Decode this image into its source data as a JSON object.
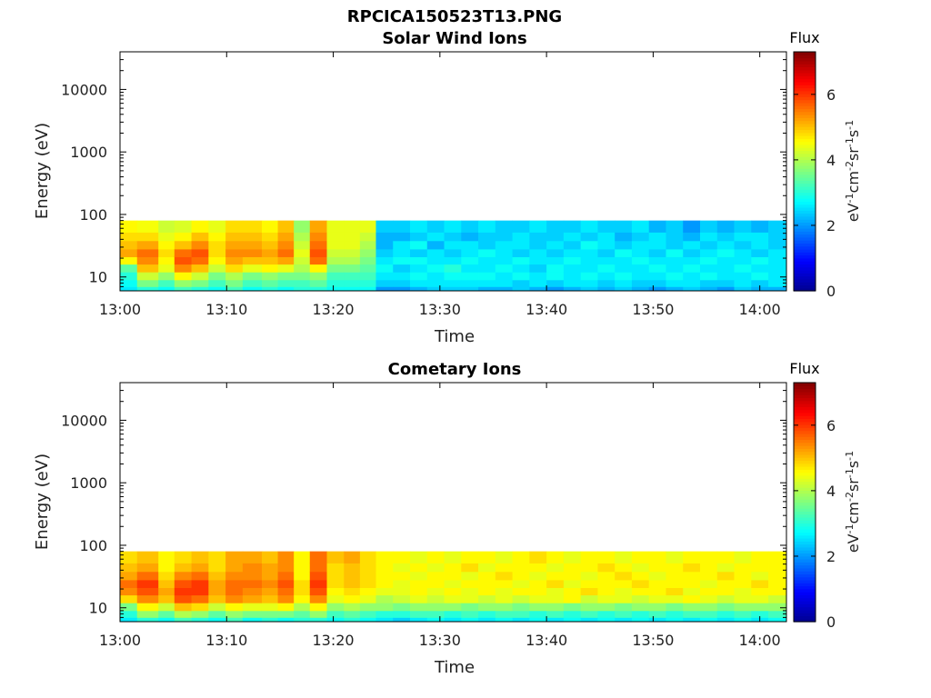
{
  "figure": {
    "title": "RPCICA150523T13.PNG",
    "colormap": [
      "#00008f",
      "#0000ff",
      "#00ffff",
      "#ffff00",
      "#ff0000",
      "#800000"
    ]
  },
  "chart_data": [
    {
      "type": "heatmap",
      "title": "Solar Wind Ions",
      "xlabel": "Time",
      "ylabel": "Energy (eV)",
      "x_unit": "minutes after 13:00",
      "xlim": [
        0,
        62.5
      ],
      "x_ticks": [
        "13:00",
        "13:10",
        "13:20",
        "13:30",
        "13:40",
        "13:50",
        "14:00"
      ],
      "y_scale": "log",
      "ylim": [
        6,
        40000
      ],
      "y_ticks": [
        "10",
        "100",
        "1000",
        "10000"
      ],
      "colorbar": {
        "label": "Flux",
        "unit": "eV⁻¹cm⁻²sr⁻¹s⁻¹",
        "range": [
          0,
          7.3
        ],
        "ticks": [
          "0",
          "2",
          "4",
          "6"
        ]
      },
      "data_energy_range": [
        6,
        80
      ],
      "x_edges": [
        0,
        1.6,
        3.6,
        5.1,
        6.7,
        8.3,
        9.9,
        11.5,
        13.3,
        14.8,
        16.3,
        17.8,
        19.4,
        21.0,
        22.5,
        24.0,
        25.6,
        27.2,
        28.8,
        30.4,
        32.0,
        33.6,
        35.2,
        36.8,
        38.4,
        40.0,
        41.6,
        43.2,
        44.8,
        46.4,
        48.0,
        49.6,
        51.2,
        52.8,
        54.4,
        56.0,
        57.6,
        59.2,
        60.8,
        62.5
      ],
      "y_edges": [
        6,
        7,
        9,
        12,
        16,
        21,
        28,
        38,
        52,
        80
      ],
      "flux": [
        [
          2.6,
          2.8,
          3.0,
          3.4,
          4.6,
          5.2,
          5.0,
          4.8,
          4.6
        ],
        [
          3.0,
          3.6,
          4.2,
          5.0,
          5.4,
          5.6,
          5.2,
          4.8,
          4.5
        ],
        [
          2.8,
          3.2,
          3.8,
          4.4,
          4.6,
          4.8,
          4.6,
          4.4,
          4.2
        ],
        [
          3.2,
          3.8,
          4.6,
          5.4,
          5.8,
          5.6,
          5.0,
          4.6,
          4.3
        ],
        [
          3.0,
          3.6,
          4.2,
          5.0,
          5.6,
          5.8,
          5.4,
          5.0,
          4.6
        ],
        [
          2.8,
          3.2,
          3.6,
          4.2,
          4.6,
          4.8,
          4.8,
          4.6,
          4.4
        ],
        [
          3.2,
          3.6,
          4.0,
          4.8,
          5.2,
          5.4,
          5.2,
          5.0,
          4.8
        ],
        [
          2.8,
          3.2,
          3.6,
          4.4,
          5.0,
          5.4,
          5.2,
          5.0,
          4.8
        ],
        [
          3.0,
          3.4,
          3.8,
          4.6,
          5.0,
          5.2,
          5.0,
          4.8,
          4.6
        ],
        [
          2.8,
          3.2,
          3.6,
          4.4,
          5.2,
          5.6,
          5.4,
          5.2,
          5.0
        ],
        [
          3.0,
          3.2,
          3.6,
          4.0,
          4.2,
          4.4,
          4.2,
          4.0,
          3.8
        ],
        [
          3.0,
          3.4,
          3.8,
          4.6,
          5.6,
          5.8,
          5.6,
          5.4,
          5.2
        ],
        [
          2.8,
          3.0,
          3.2,
          3.6,
          4.0,
          4.2,
          4.4,
          4.4,
          4.4
        ],
        [
          2.8,
          3.0,
          3.2,
          3.6,
          4.0,
          4.2,
          4.4,
          4.4,
          4.4
        ],
        [
          2.8,
          3.0,
          3.2,
          3.4,
          3.6,
          3.8,
          4.0,
          4.2,
          4.4
        ],
        [
          2.0,
          2.4,
          2.6,
          2.8,
          2.6,
          2.4,
          2.2,
          2.2,
          2.4
        ],
        [
          2.0,
          2.4,
          2.6,
          2.4,
          2.8,
          2.6,
          2.6,
          2.2,
          2.4
        ],
        [
          2.2,
          2.6,
          2.8,
          2.6,
          2.8,
          2.4,
          2.8,
          2.4,
          2.6
        ],
        [
          2.4,
          2.6,
          2.6,
          2.8,
          2.6,
          2.6,
          2.2,
          2.6,
          2.4
        ],
        [
          2.4,
          2.6,
          2.8,
          3.0,
          2.6,
          2.4,
          2.6,
          2.4,
          2.6
        ],
        [
          2.4,
          2.6,
          2.8,
          2.6,
          2.8,
          2.6,
          2.6,
          2.2,
          2.4
        ],
        [
          2.2,
          2.6,
          2.8,
          2.6,
          2.6,
          2.8,
          2.4,
          2.4,
          2.6
        ],
        [
          2.2,
          2.6,
          2.6,
          2.8,
          2.6,
          2.6,
          2.6,
          2.4,
          2.4
        ],
        [
          2.4,
          2.4,
          2.8,
          2.6,
          2.8,
          2.4,
          2.6,
          2.6,
          2.4
        ],
        [
          2.2,
          2.6,
          2.6,
          2.4,
          2.6,
          2.6,
          2.4,
          2.4,
          2.6
        ],
        [
          2.0,
          2.4,
          2.8,
          2.8,
          2.6,
          2.4,
          2.6,
          2.4,
          2.4
        ],
        [
          2.2,
          2.6,
          2.6,
          2.6,
          2.8,
          2.6,
          2.4,
          2.6,
          2.4
        ],
        [
          2.4,
          2.6,
          2.8,
          2.6,
          2.6,
          2.6,
          2.8,
          2.4,
          2.6
        ],
        [
          2.2,
          2.4,
          2.6,
          2.8,
          2.6,
          2.4,
          2.6,
          2.6,
          2.4
        ],
        [
          2.4,
          2.6,
          2.8,
          2.6,
          2.6,
          2.8,
          2.4,
          2.2,
          2.4
        ],
        [
          2.2,
          2.4,
          2.6,
          2.6,
          2.8,
          2.6,
          2.6,
          2.4,
          2.6
        ],
        [
          2.0,
          2.4,
          2.6,
          2.8,
          2.6,
          2.4,
          2.6,
          2.6,
          2.2
        ],
        [
          2.2,
          2.6,
          2.8,
          2.6,
          2.6,
          2.8,
          2.4,
          2.4,
          2.4
        ],
        [
          2.4,
          2.6,
          2.6,
          2.8,
          2.6,
          2.4,
          2.6,
          2.2,
          2.0
        ],
        [
          2.2,
          2.4,
          2.8,
          2.6,
          2.8,
          2.6,
          2.4,
          2.6,
          2.4
        ],
        [
          2.0,
          2.4,
          2.6,
          2.6,
          2.6,
          2.8,
          2.6,
          2.4,
          2.2
        ],
        [
          2.4,
          2.6,
          2.6,
          2.8,
          2.6,
          2.6,
          2.4,
          2.6,
          2.4
        ],
        [
          2.2,
          2.4,
          2.8,
          2.6,
          2.8,
          2.4,
          2.6,
          2.6,
          2.2
        ],
        [
          2.2,
          2.6,
          2.6,
          2.6,
          2.6,
          2.6,
          2.4,
          2.4,
          2.4
        ]
      ]
    },
    {
      "type": "heatmap",
      "title": "Cometary Ions",
      "xlabel": "Time",
      "ylabel": "Energy (eV)",
      "x_unit": "minutes after 13:00",
      "xlim": [
        0,
        62.5
      ],
      "x_ticks": [
        "13:00",
        "13:10",
        "13:20",
        "13:30",
        "13:40",
        "13:50",
        "14:00"
      ],
      "y_scale": "log",
      "ylim": [
        6,
        40000
      ],
      "y_ticks": [
        "10",
        "100",
        "1000",
        "10000"
      ],
      "colorbar": {
        "label": "Flux",
        "unit": "eV⁻¹cm⁻²sr⁻¹s⁻¹",
        "range": [
          0,
          7.3
        ],
        "ticks": [
          "0",
          "2",
          "4",
          "6"
        ]
      },
      "data_energy_range": [
        6,
        80
      ],
      "x_edges": [
        0,
        1.6,
        3.6,
        5.1,
        6.7,
        8.3,
        9.9,
        11.5,
        13.3,
        14.8,
        16.3,
        17.8,
        19.4,
        21.0,
        22.5,
        24.0,
        25.6,
        27.2,
        28.8,
        30.4,
        32.0,
        33.6,
        35.2,
        36.8,
        38.4,
        40.0,
        41.6,
        43.2,
        44.8,
        46.4,
        48.0,
        49.6,
        51.2,
        52.8,
        54.4,
        56.0,
        57.6,
        59.2,
        60.8,
        62.5
      ],
      "y_edges": [
        6,
        7,
        9,
        12,
        16,
        21,
        28,
        38,
        52,
        80
      ],
      "flux": [
        [
          2.6,
          3.0,
          3.6,
          4.8,
          5.4,
          5.6,
          5.2,
          5.0,
          4.8
        ],
        [
          3.0,
          3.8,
          4.6,
          5.4,
          5.8,
          6.0,
          5.6,
          5.2,
          5.0
        ],
        [
          2.8,
          3.4,
          4.2,
          5.0,
          5.2,
          5.0,
          4.8,
          4.6,
          4.6
        ],
        [
          3.2,
          4.0,
          5.0,
          5.8,
          6.0,
          5.8,
          5.4,
          5.0,
          4.8
        ],
        [
          3.0,
          3.8,
          4.8,
          5.6,
          6.0,
          6.0,
          5.6,
          5.2,
          5.0
        ],
        [
          2.8,
          3.4,
          4.2,
          5.0,
          5.2,
          5.2,
          5.0,
          4.8,
          4.8
        ],
        [
          3.2,
          3.8,
          4.6,
          5.4,
          5.6,
          5.6,
          5.4,
          5.2,
          5.2
        ],
        [
          2.8,
          3.6,
          4.4,
          5.2,
          5.4,
          5.6,
          5.4,
          5.4,
          5.2
        ],
        [
          3.0,
          3.6,
          4.4,
          5.0,
          5.2,
          5.4,
          5.2,
          5.2,
          5.0
        ],
        [
          2.8,
          3.6,
          4.6,
          5.4,
          5.6,
          5.8,
          5.6,
          5.4,
          5.4
        ],
        [
          3.0,
          3.4,
          4.0,
          4.6,
          4.8,
          4.8,
          4.6,
          4.6,
          4.6
        ],
        [
          3.0,
          3.8,
          4.6,
          5.4,
          5.8,
          6.0,
          5.8,
          5.6,
          5.6
        ],
        [
          2.8,
          3.2,
          3.8,
          4.4,
          4.6,
          4.8,
          4.8,
          4.8,
          5.0
        ],
        [
          3.0,
          3.4,
          4.0,
          4.6,
          4.8,
          5.0,
          5.0,
          5.0,
          5.2
        ],
        [
          2.8,
          3.2,
          3.8,
          4.4,
          4.6,
          4.8,
          4.8,
          4.8,
          4.8
        ],
        [
          2.6,
          3.0,
          3.8,
          4.0,
          4.4,
          4.6,
          4.6,
          4.6,
          4.6
        ],
        [
          2.4,
          3.0,
          3.6,
          4.2,
          4.4,
          4.4,
          4.6,
          4.4,
          4.6
        ],
        [
          2.6,
          3.2,
          3.8,
          4.4,
          4.6,
          4.6,
          4.4,
          4.6,
          4.4
        ],
        [
          2.8,
          3.2,
          3.8,
          4.2,
          4.4,
          4.6,
          4.6,
          4.4,
          4.6
        ],
        [
          2.6,
          3.0,
          3.8,
          4.4,
          4.6,
          4.4,
          4.6,
          4.6,
          4.4
        ],
        [
          2.8,
          3.2,
          3.6,
          4.4,
          4.4,
          4.6,
          4.4,
          4.8,
          4.6
        ],
        [
          2.6,
          3.0,
          3.8,
          4.2,
          4.6,
          4.6,
          4.6,
          4.4,
          4.6
        ],
        [
          2.8,
          3.2,
          3.8,
          4.4,
          4.4,
          4.6,
          4.8,
          4.6,
          4.4
        ],
        [
          2.6,
          3.2,
          3.6,
          4.2,
          4.6,
          4.4,
          4.6,
          4.6,
          4.6
        ],
        [
          2.8,
          3.0,
          3.8,
          4.4,
          4.6,
          4.6,
          4.4,
          4.6,
          4.8
        ],
        [
          2.6,
          3.2,
          3.8,
          4.4,
          4.4,
          4.8,
          4.6,
          4.4,
          4.6
        ],
        [
          2.8,
          3.0,
          3.6,
          4.6,
          4.6,
          4.4,
          4.6,
          4.6,
          4.4
        ],
        [
          2.6,
          3.2,
          3.8,
          4.2,
          4.8,
          4.6,
          4.4,
          4.6,
          4.6
        ],
        [
          2.8,
          3.0,
          3.8,
          4.4,
          4.6,
          4.6,
          4.6,
          4.8,
          4.6
        ],
        [
          2.6,
          3.2,
          3.6,
          4.4,
          4.4,
          4.6,
          4.8,
          4.6,
          4.4
        ],
        [
          2.8,
          3.0,
          3.8,
          4.2,
          4.6,
          4.8,
          4.6,
          4.4,
          4.6
        ],
        [
          2.6,
          3.2,
          3.8,
          4.4,
          4.6,
          4.6,
          4.4,
          4.6,
          4.6
        ],
        [
          2.8,
          3.0,
          3.6,
          4.4,
          4.8,
          4.6,
          4.6,
          4.6,
          4.4
        ],
        [
          2.6,
          3.2,
          3.8,
          4.6,
          4.4,
          4.6,
          4.6,
          4.8,
          4.6
        ],
        [
          2.8,
          3.2,
          3.8,
          4.4,
          4.6,
          4.4,
          4.6,
          4.6,
          4.6
        ],
        [
          2.6,
          3.0,
          3.6,
          4.2,
          4.6,
          4.6,
          4.8,
          4.4,
          4.6
        ],
        [
          2.8,
          3.2,
          3.8,
          4.4,
          4.4,
          4.6,
          4.6,
          4.6,
          4.4
        ],
        [
          2.6,
          3.0,
          3.8,
          4.4,
          4.6,
          4.8,
          4.4,
          4.6,
          4.6
        ],
        [
          2.8,
          3.2,
          3.8,
          4.2,
          4.6,
          4.6,
          4.6,
          4.6,
          4.6
        ]
      ]
    }
  ]
}
